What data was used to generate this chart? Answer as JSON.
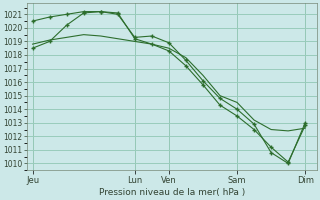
{
  "background_color": "#cce8e8",
  "grid_color": "#99ccbb",
  "line_color": "#2d6e2d",
  "marker_color": "#2d6e2d",
  "xlabel": "Pression niveau de la mer( hPa )",
  "ylim": [
    1009.5,
    1021.8
  ],
  "yticks": [
    1010,
    1011,
    1012,
    1013,
    1014,
    1015,
    1016,
    1017,
    1018,
    1019,
    1020,
    1021
  ],
  "x_tick_labels": [
    "Jeu",
    "Lun",
    "Ven",
    "Sam",
    "Dim"
  ],
  "x_tick_positions": [
    0,
    36,
    48,
    72,
    96
  ],
  "x_vline_positions": [
    0,
    36,
    48,
    72,
    96
  ],
  "xlim": [
    -2,
    100
  ],
  "series": [
    {
      "x": [
        0,
        6,
        12,
        18,
        24,
        30,
        36,
        42,
        48,
        54,
        60,
        66,
        72,
        78,
        84,
        90,
        96
      ],
      "y": [
        1020.5,
        1020.8,
        1021.0,
        1021.2,
        1021.2,
        1021.0,
        1019.3,
        1019.4,
        1018.9,
        1017.6,
        1016.1,
        1014.8,
        1014.0,
        1012.9,
        1010.8,
        1010.0,
        1013.0
      ],
      "has_markers": true
    },
    {
      "x": [
        0,
        6,
        12,
        18,
        24,
        30,
        36,
        42,
        48,
        54,
        60,
        66,
        72,
        78,
        84,
        90,
        96
      ],
      "y": [
        1018.8,
        1019.1,
        1019.3,
        1019.5,
        1019.4,
        1019.2,
        1019.0,
        1018.8,
        1018.5,
        1017.8,
        1016.5,
        1015.0,
        1014.5,
        1013.2,
        1012.5,
        1012.4,
        1012.6
      ],
      "has_markers": false
    },
    {
      "x": [
        0,
        6,
        12,
        18,
        24,
        30,
        36,
        42,
        48,
        54,
        60,
        66,
        72,
        78,
        84,
        90,
        96
      ],
      "y": [
        1018.5,
        1019.0,
        1020.2,
        1021.1,
        1021.2,
        1021.1,
        1019.2,
        1018.8,
        1018.3,
        1017.2,
        1015.8,
        1014.3,
        1013.5,
        1012.5,
        1011.2,
        1010.1,
        1012.8
      ],
      "has_markers": true
    }
  ]
}
